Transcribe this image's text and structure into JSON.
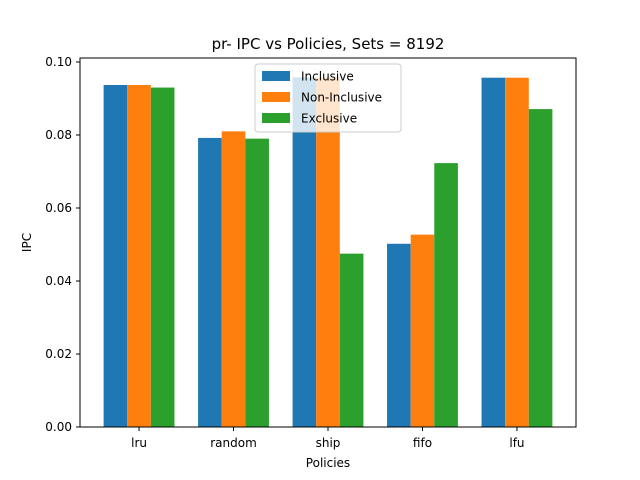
{
  "chart_data": {
    "type": "bar",
    "title": "pr- IPC vs Policies, Sets = 8192",
    "xlabel": "Policies",
    "ylabel": "IPC",
    "categories": [
      "lru",
      "random",
      "ship",
      "fifo",
      "lfu"
    ],
    "series": [
      {
        "name": "Inclusive",
        "color": "#1f77b4",
        "values": [
          0.0937,
          0.0792,
          0.0958,
          0.0502,
          0.0957
        ]
      },
      {
        "name": "Non-Inclusive",
        "color": "#ff7f0e",
        "values": [
          0.0937,
          0.081,
          0.0958,
          0.0527,
          0.0957
        ]
      },
      {
        "name": "Exclusive",
        "color": "#2ca02c",
        "values": [
          0.093,
          0.079,
          0.0475,
          0.0723,
          0.0871
        ]
      }
    ],
    "ylim": [
      0,
      0.1
    ],
    "yticks": [
      "0.00",
      "0.02",
      "0.04",
      "0.06",
      "0.08",
      "0.10"
    ],
    "legend_position": "top-center",
    "grid": false
  }
}
